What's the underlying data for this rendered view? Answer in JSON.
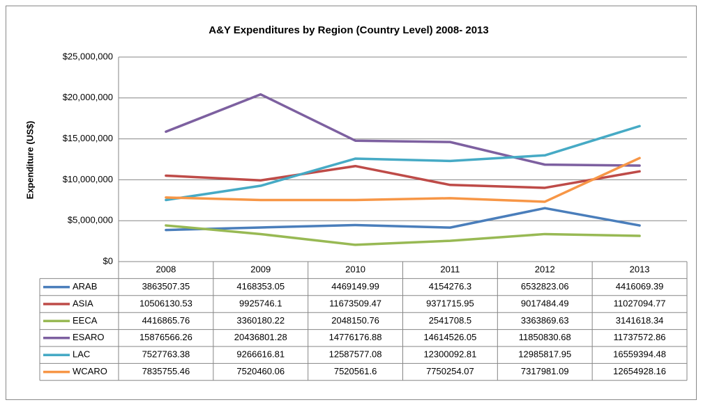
{
  "chart_data": {
    "type": "line",
    "title": "A&Y Expenditures by Region (Country Level) 2008- 2013",
    "y_label": "Expenditure (US$)",
    "categories": [
      "2008",
      "2009",
      "2010",
      "2011",
      "2012",
      "2013"
    ],
    "ylim": [
      0,
      25000000
    ],
    "yticks": [
      {
        "value": 0,
        "label": "$0"
      },
      {
        "value": 5000000,
        "label": "$5,000,000"
      },
      {
        "value": 10000000,
        "label": "$10,000,000"
      },
      {
        "value": 15000000,
        "label": "$15,000,000"
      },
      {
        "value": 20000000,
        "label": "$20,000,000"
      },
      {
        "value": 25000000,
        "label": "$25,000,000"
      }
    ],
    "grid": true,
    "data_table": true,
    "series": [
      {
        "name": "ARAB",
        "color": "#4a7ebb",
        "values": [
          3863507.35,
          4168353.05,
          4469149.99,
          4154276.3,
          6532823.06,
          4416069.39
        ]
      },
      {
        "name": "ASIA",
        "color": "#be4b48",
        "values": [
          10506130.53,
          9925746.1,
          11673509.47,
          9371715.95,
          9017484.49,
          11027094.77
        ]
      },
      {
        "name": "EECA",
        "color": "#98b954",
        "values": [
          4416865.76,
          3360180.22,
          2048150.76,
          2541708.5,
          3363869.63,
          3141618.34
        ]
      },
      {
        "name": "ESARO",
        "color": "#7d60a0",
        "values": [
          15876566.26,
          20436801.28,
          14776176.88,
          14614526.05,
          11850830.68,
          11737572.86
        ]
      },
      {
        "name": "LAC",
        "color": "#46aac5",
        "values": [
          7527763.38,
          9266616.81,
          12587577.08,
          12300092.81,
          12985817.95,
          16559394.48
        ]
      },
      {
        "name": "WCARO",
        "color": "#f79646",
        "values": [
          7835755.46,
          7520460.06,
          7520561.6,
          7750254.07,
          7317981.09,
          12654928.16
        ]
      }
    ]
  }
}
